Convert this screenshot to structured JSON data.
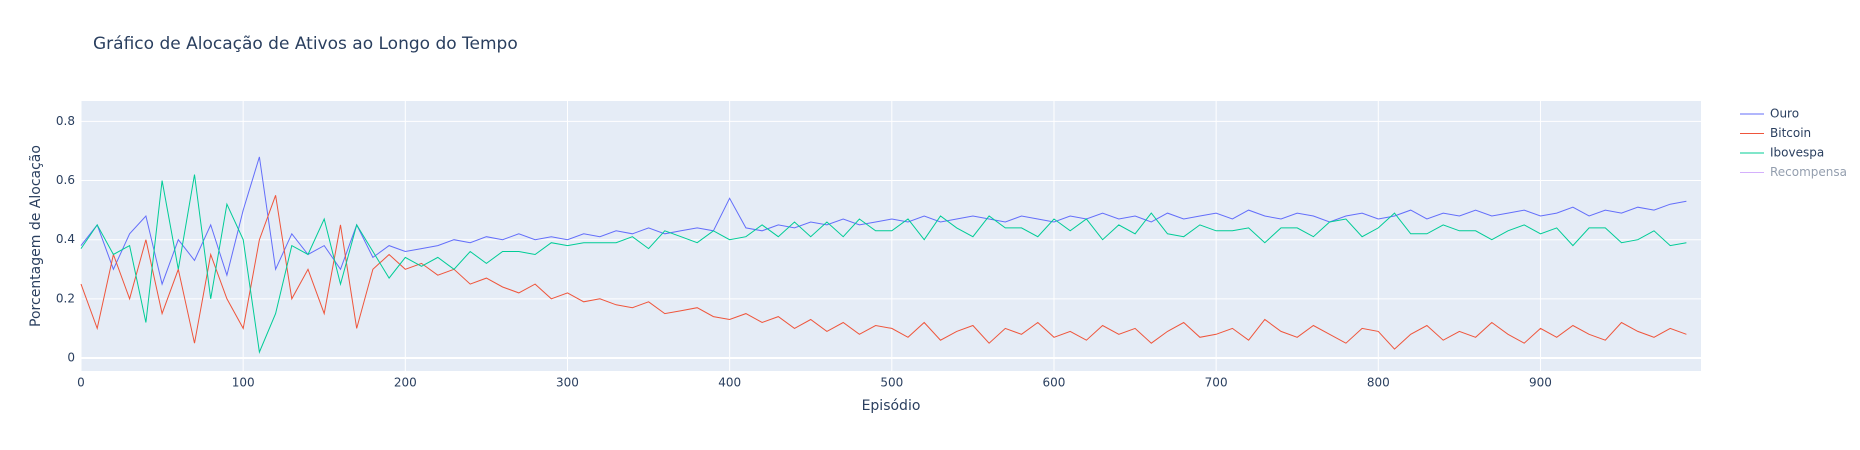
{
  "chart_data": {
    "type": "line",
    "title": "Gráfico de Alocação de Ativos ao Longo do Tempo",
    "xlabel": "Episódio",
    "ylabel": "Porcentagem de Alocação",
    "x": [
      0,
      10,
      20,
      30,
      40,
      50,
      60,
      70,
      80,
      90,
      100,
      110,
      120,
      130,
      140,
      150,
      160,
      170,
      180,
      190,
      200,
      210,
      220,
      230,
      240,
      250,
      260,
      270,
      280,
      290,
      300,
      310,
      320,
      330,
      340,
      350,
      360,
      370,
      380,
      390,
      400,
      410,
      420,
      430,
      440,
      450,
      460,
      470,
      480,
      490,
      500,
      510,
      520,
      530,
      540,
      550,
      560,
      570,
      580,
      590,
      600,
      610,
      620,
      630,
      640,
      650,
      660,
      670,
      680,
      690,
      700,
      710,
      720,
      730,
      740,
      750,
      760,
      770,
      780,
      790,
      800,
      810,
      820,
      830,
      840,
      850,
      860,
      870,
      880,
      890,
      900,
      910,
      920,
      930,
      940,
      950,
      960,
      970,
      980,
      990
    ],
    "series": [
      {
        "name": "Ouro",
        "color": "#636efa",
        "values": [
          0.38,
          0.45,
          0.3,
          0.42,
          0.48,
          0.25,
          0.4,
          0.33,
          0.45,
          0.28,
          0.5,
          0.68,
          0.3,
          0.42,
          0.35,
          0.38,
          0.3,
          0.45,
          0.34,
          0.38,
          0.36,
          0.37,
          0.38,
          0.4,
          0.39,
          0.41,
          0.4,
          0.42,
          0.4,
          0.41,
          0.4,
          0.42,
          0.41,
          0.43,
          0.42,
          0.44,
          0.42,
          0.43,
          0.44,
          0.43,
          0.54,
          0.44,
          0.43,
          0.45,
          0.44,
          0.46,
          0.45,
          0.47,
          0.45,
          0.46,
          0.47,
          0.46,
          0.48,
          0.46,
          0.47,
          0.48,
          0.47,
          0.46,
          0.48,
          0.47,
          0.46,
          0.48,
          0.47,
          0.49,
          0.47,
          0.48,
          0.46,
          0.49,
          0.47,
          0.48,
          0.49,
          0.47,
          0.5,
          0.48,
          0.47,
          0.49,
          0.48,
          0.46,
          0.48,
          0.49,
          0.47,
          0.48,
          0.5,
          0.47,
          0.49,
          0.48,
          0.5,
          0.48,
          0.49,
          0.5,
          0.48,
          0.49,
          0.51,
          0.48,
          0.5,
          0.49,
          0.51,
          0.5,
          0.52,
          0.53
        ]
      },
      {
        "name": "Bitcoin",
        "color": "#EF553B",
        "values": [
          0.25,
          0.1,
          0.35,
          0.2,
          0.4,
          0.15,
          0.3,
          0.05,
          0.35,
          0.2,
          0.1,
          0.4,
          0.55,
          0.2,
          0.3,
          0.15,
          0.45,
          0.1,
          0.3,
          0.35,
          0.3,
          0.32,
          0.28,
          0.3,
          0.25,
          0.27,
          0.24,
          0.22,
          0.25,
          0.2,
          0.22,
          0.19,
          0.2,
          0.18,
          0.17,
          0.19,
          0.15,
          0.16,
          0.17,
          0.14,
          0.13,
          0.15,
          0.12,
          0.14,
          0.1,
          0.13,
          0.09,
          0.12,
          0.08,
          0.11,
          0.1,
          0.07,
          0.12,
          0.06,
          0.09,
          0.11,
          0.05,
          0.1,
          0.08,
          0.12,
          0.07,
          0.09,
          0.06,
          0.11,
          0.08,
          0.1,
          0.05,
          0.09,
          0.12,
          0.07,
          0.08,
          0.1,
          0.06,
          0.13,
          0.09,
          0.07,
          0.11,
          0.08,
          0.05,
          0.1,
          0.09,
          0.03,
          0.08,
          0.11,
          0.06,
          0.09,
          0.07,
          0.12,
          0.08,
          0.05,
          0.1,
          0.07,
          0.11,
          0.08,
          0.06,
          0.12,
          0.09,
          0.07,
          0.1,
          0.08
        ]
      },
      {
        "name": "Ibovespa",
        "color": "#00cc96",
        "values": [
          0.37,
          0.45,
          0.35,
          0.38,
          0.12,
          0.6,
          0.3,
          0.62,
          0.2,
          0.52,
          0.4,
          0.02,
          0.15,
          0.38,
          0.35,
          0.47,
          0.25,
          0.45,
          0.36,
          0.27,
          0.34,
          0.31,
          0.34,
          0.3,
          0.36,
          0.32,
          0.36,
          0.36,
          0.35,
          0.39,
          0.38,
          0.39,
          0.39,
          0.39,
          0.41,
          0.37,
          0.43,
          0.41,
          0.39,
          0.43,
          0.4,
          0.41,
          0.45,
          0.41,
          0.46,
          0.41,
          0.46,
          0.41,
          0.47,
          0.43,
          0.43,
          0.47,
          0.4,
          0.48,
          0.44,
          0.41,
          0.48,
          0.44,
          0.44,
          0.41,
          0.47,
          0.43,
          0.47,
          0.4,
          0.45,
          0.42,
          0.49,
          0.42,
          0.41,
          0.45,
          0.43,
          0.43,
          0.44,
          0.39,
          0.44,
          0.44,
          0.41,
          0.46,
          0.47,
          0.41,
          0.44,
          0.49,
          0.42,
          0.42,
          0.45,
          0.43,
          0.43,
          0.4,
          0.43,
          0.45,
          0.42,
          0.44,
          0.38,
          0.44,
          0.44,
          0.39,
          0.4,
          0.43,
          0.38,
          0.39
        ]
      }
    ],
    "legend_only": [
      {
        "name": "Recompensa",
        "color": "#ab63fa"
      }
    ],
    "xlim": [
      0,
      999
    ],
    "ylim": [
      -0.044,
      0.869
    ],
    "xticks": [
      0,
      100,
      200,
      300,
      400,
      500,
      600,
      700,
      800,
      900
    ],
    "yticks": [
      0,
      0.2,
      0.4,
      0.6,
      0.8
    ],
    "grid": true,
    "legend": "right"
  }
}
